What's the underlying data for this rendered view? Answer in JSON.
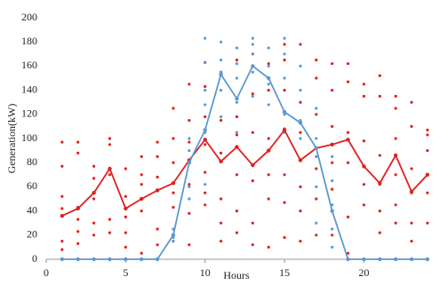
{
  "chart_data": {
    "type": "line",
    "xlabel": "Hours",
    "ylabel": "Generation(kW)",
    "xlim": [
      0,
      24
    ],
    "ylim": [
      0,
      200
    ],
    "xticks": [
      0,
      5,
      10,
      15,
      20
    ],
    "yticks": [
      0,
      20,
      40,
      60,
      80,
      100,
      120,
      140,
      160,
      180,
      200
    ],
    "x": [
      1,
      2,
      3,
      4,
      5,
      6,
      7,
      8,
      9,
      10,
      11,
      12,
      13,
      14,
      15,
      16,
      17,
      18,
      19,
      20,
      21,
      22,
      23,
      24
    ],
    "series": [
      {
        "color": "#e02020",
        "values": [
          36,
          42,
          55,
          75,
          42,
          50,
          57,
          63,
          82,
          99,
          81,
          93,
          78,
          90,
          107,
          82,
          92,
          95,
          99,
          77,
          63,
          86,
          56,
          70
        ]
      },
      {
        "color": "#5a9ad0",
        "values": [
          0,
          0,
          0,
          0,
          0,
          0,
          0,
          20,
          80,
          107,
          153,
          133,
          160,
          150,
          122,
          113,
          92,
          40,
          0,
          0,
          0,
          0,
          0,
          0
        ]
      }
    ],
    "scatter": [
      {
        "color": "#e02020",
        "groups": [
          {
            "x": 1,
            "y": [
              97,
              77,
              52,
              42,
              15,
              8
            ]
          },
          {
            "x": 2,
            "y": [
              97,
              88,
              43,
              33,
              23,
              13
            ]
          },
          {
            "x": 3,
            "y": [
              77,
              67,
              50,
              30,
              20
            ]
          },
          {
            "x": 4,
            "y": [
              100,
              95,
              70,
              33,
              22
            ]
          },
          {
            "x": 5,
            "y": [
              75,
              52,
              35,
              22,
              10
            ]
          },
          {
            "x": 6,
            "y": [
              85,
              70,
              62,
              40,
              5
            ]
          },
          {
            "x": 7,
            "y": [
              97,
              85,
              68,
              25,
              12
            ]
          },
          {
            "x": 8,
            "y": [
              125,
              100,
              80,
              55,
              43,
              15
            ]
          },
          {
            "x": 9,
            "y": [
              145,
              115,
              97,
              62,
              38,
              12
            ]
          },
          {
            "x": 10,
            "y": [
              163,
              143,
              118,
              95,
              72,
              55,
              45
            ]
          },
          {
            "x": 11,
            "y": [
              155,
              115,
              88,
              50,
              30,
              15
            ]
          },
          {
            "x": 12,
            "y": [
              165,
              118,
              103,
              70,
              40,
              22
            ]
          },
          {
            "x": 13,
            "y": [
              170,
              137,
              105,
              65,
              30,
              12
            ]
          },
          {
            "x": 14,
            "y": [
              162,
              140,
              100,
              70,
              50,
              10
            ]
          },
          {
            "x": 15,
            "y": [
              178,
              165,
              140,
              108,
              70,
              47,
              18
            ]
          },
          {
            "x": 16,
            "y": [
              178,
              130,
              105,
              60,
              40,
              15
            ]
          },
          {
            "x": 17,
            "y": [
              165,
              150,
              120,
              75,
              50,
              20
            ]
          },
          {
            "x": 18,
            "y": [
              162,
              140,
              110,
              80,
              58,
              20
            ]
          },
          {
            "x": 19,
            "y": [
              162,
              147,
              105,
              80,
              35,
              5
            ]
          },
          {
            "x": 20,
            "y": [
              145,
              135,
              98,
              62,
              45
            ]
          },
          {
            "x": 21,
            "y": [
              152,
              135,
              86,
              62,
              40,
              22
            ]
          },
          {
            "x": 22,
            "y": [
              135,
              125,
              100,
              70,
              45,
              30
            ]
          },
          {
            "x": 23,
            "y": [
              130,
              110,
              75,
              55,
              30,
              15
            ]
          },
          {
            "x": 24,
            "y": [
              107,
              103,
              90,
              55,
              30
            ]
          }
        ]
      },
      {
        "color": "#5a9ad0",
        "groups": [
          {
            "x": 8,
            "y": [
              25,
              18,
              15
            ]
          },
          {
            "x": 9,
            "y": [
              100,
              90,
              60,
              50
            ]
          },
          {
            "x": 10,
            "y": [
              183,
              163,
              140,
              128,
              105,
              62
            ]
          },
          {
            "x": 11,
            "y": [
              180,
              165,
              155,
              140,
              118
            ]
          },
          {
            "x": 12,
            "y": [
              175,
              162,
              150,
              130,
              105
            ]
          },
          {
            "x": 13,
            "y": [
              183,
              178,
              170,
              155,
              135
            ]
          },
          {
            "x": 14,
            "y": [
              175,
              160,
              145,
              128
            ]
          },
          {
            "x": 15,
            "y": [
              183,
              170,
              150,
              120,
              105
            ]
          },
          {
            "x": 16,
            "y": [
              160,
              140,
              115,
              100
            ]
          },
          {
            "x": 17,
            "y": [
              125,
              100,
              85,
              60,
              30
            ]
          },
          {
            "x": 18,
            "y": [
              85,
              65,
              45,
              25,
              10
            ]
          }
        ]
      }
    ]
  }
}
